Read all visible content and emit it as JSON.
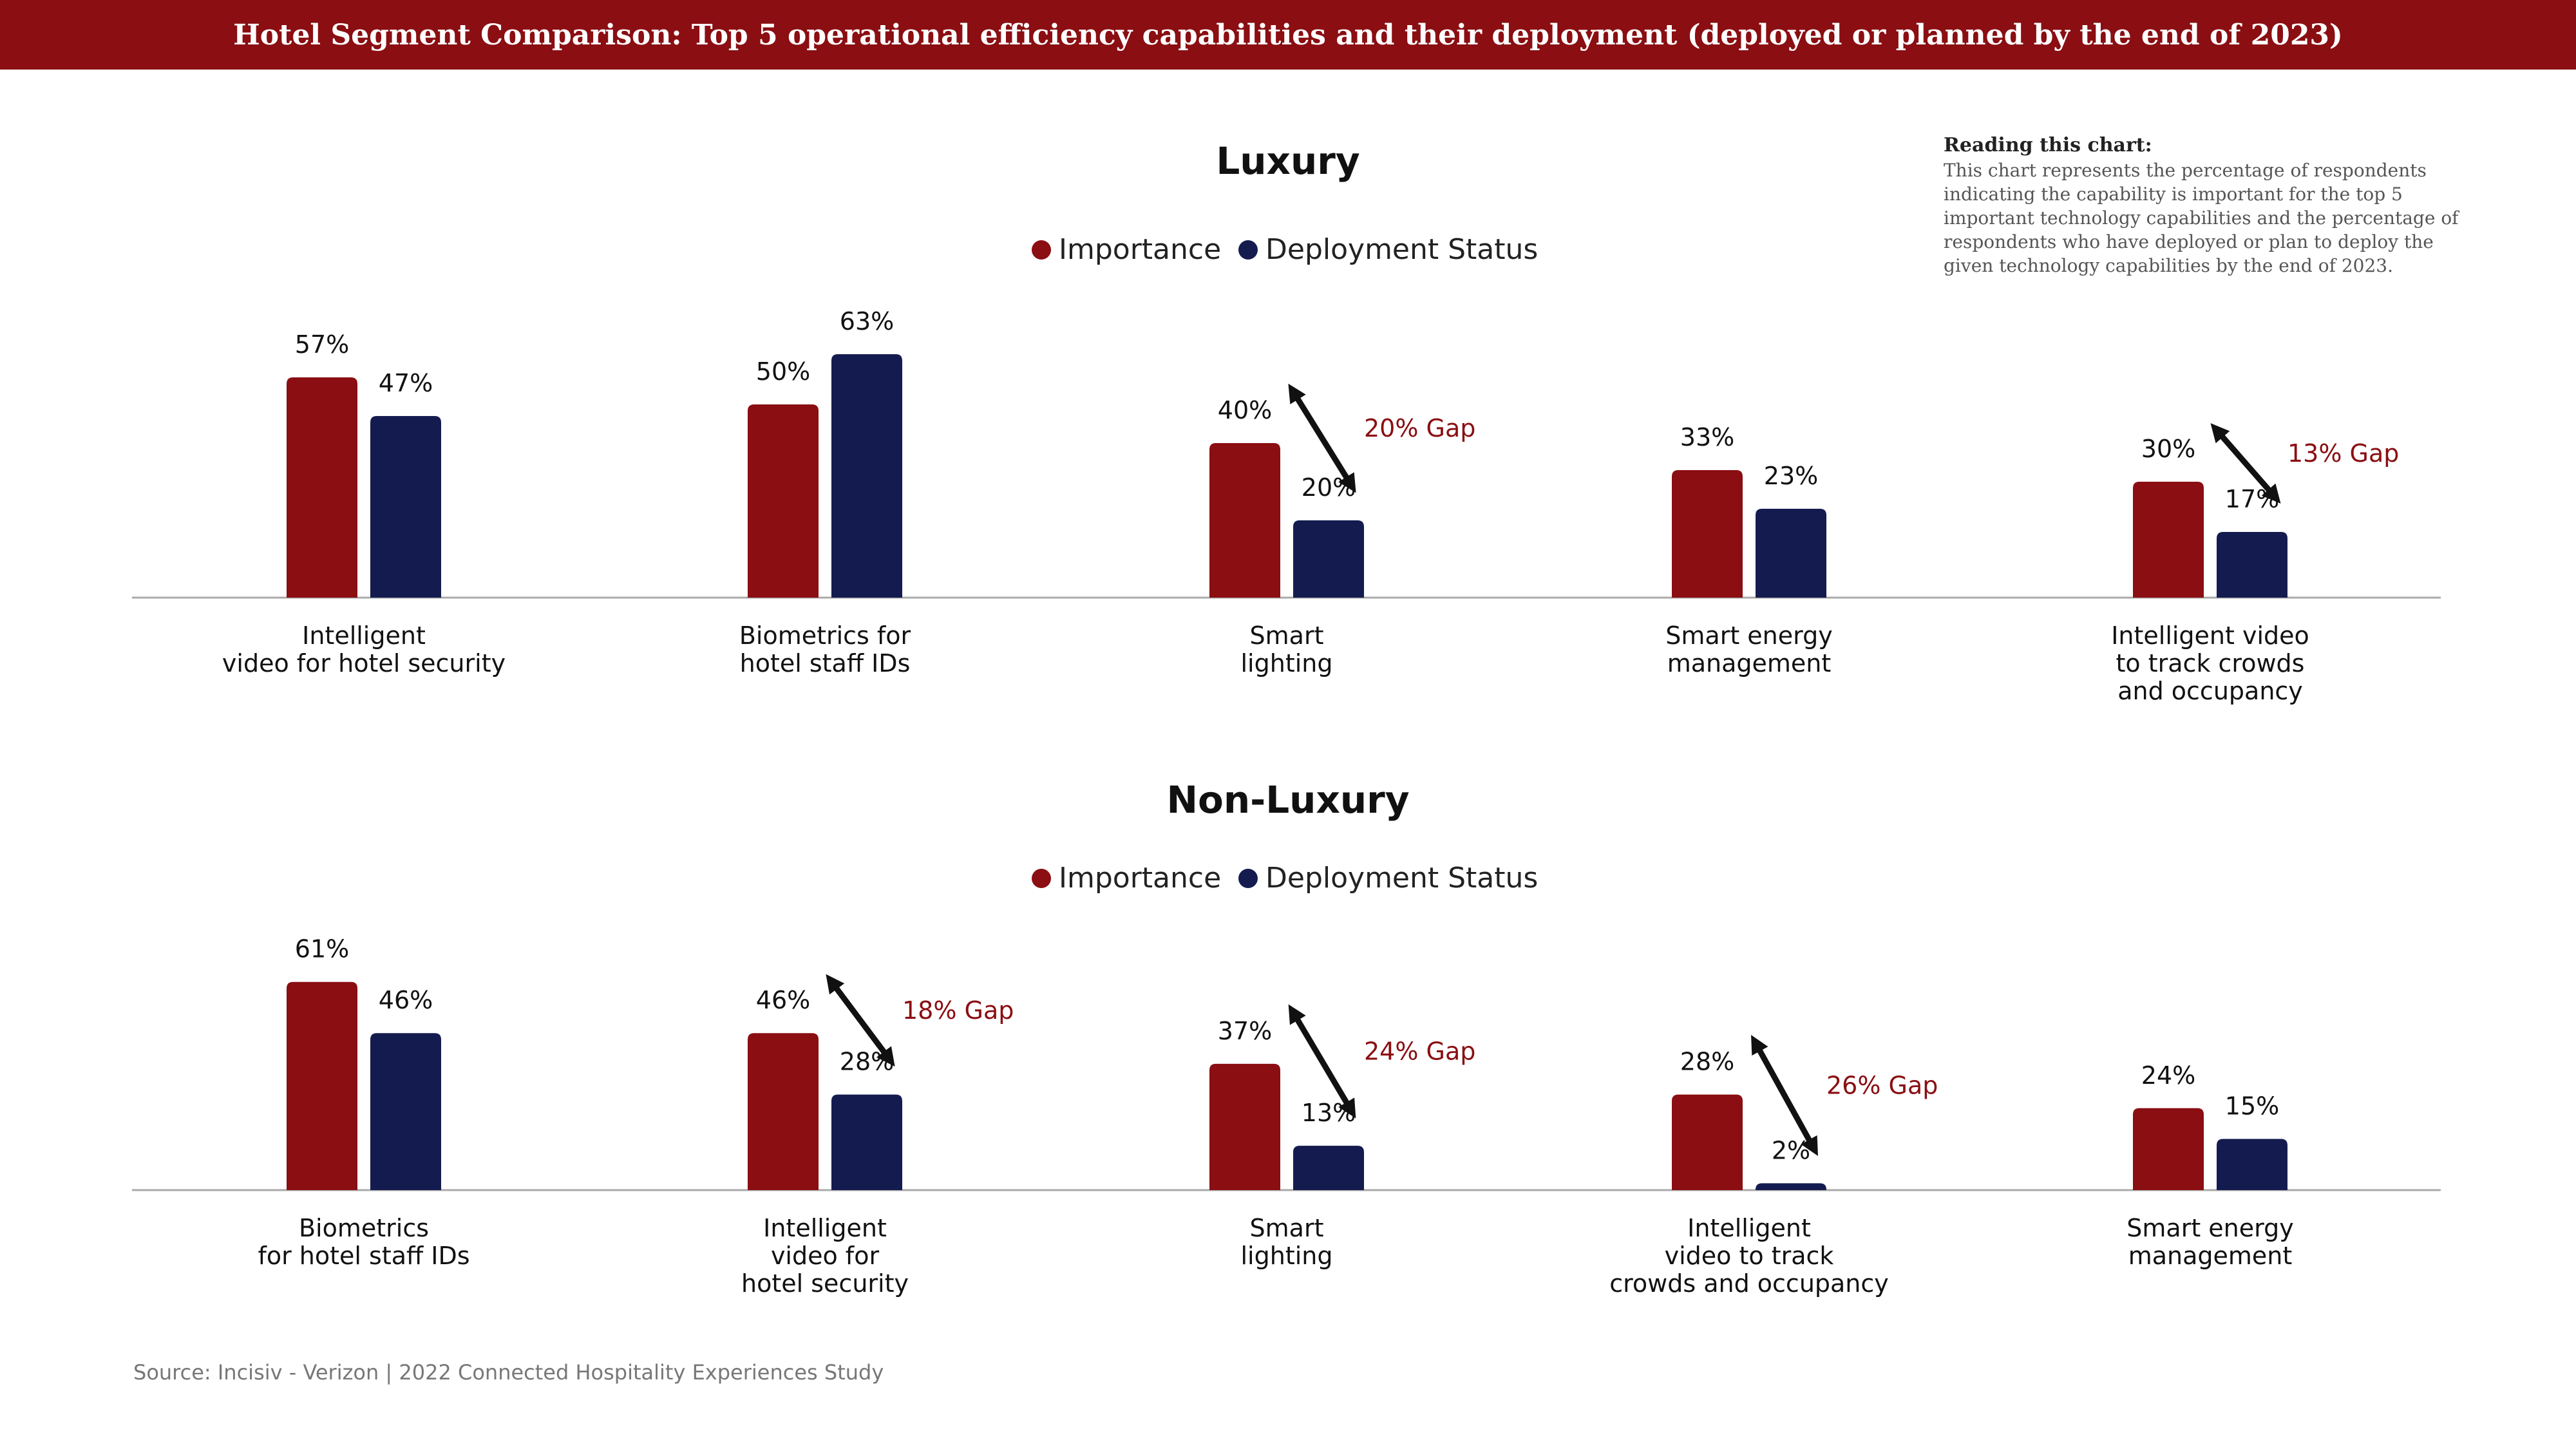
{
  "header": {
    "title": "Hotel Segment Comparison: Top 5 operational efficiency capabilities and their deployment (deployed or planned by the end of 2023)"
  },
  "note": {
    "heading": "Reading this chart:",
    "body": "This chart represents the percentage of respondents indicating the capability is important for the top 5 important technology capabilities and the percentage of respondents who have deployed or plan to deploy the given technology capabilities by the end of 2023."
  },
  "source": "Source: Incisiv - Verizon | 2022 Connected Hospitality Experiences Study",
  "colors": {
    "importance": "#8a0e12",
    "deployment": "#141c4f",
    "gap_text": "#8a0e12",
    "banner": "#8a0e12"
  },
  "chart_data": [
    {
      "type": "bar",
      "title": "Luxury",
      "legend": [
        "Importance",
        "Deployment Status"
      ],
      "legend_position": "top-center",
      "categories": [
        [
          "Intelligent",
          "video for hotel security"
        ],
        [
          "Biometrics for",
          "hotel staff IDs"
        ],
        [
          "Smart",
          "lighting"
        ],
        [
          "Smart energy",
          "management"
        ],
        [
          "Intelligent video",
          "to track crowds",
          "and occupancy"
        ]
      ],
      "series": [
        {
          "name": "Importance",
          "values": [
            57,
            50,
            40,
            33,
            30
          ]
        },
        {
          "name": "Deployment Status",
          "values": [
            47,
            63,
            20,
            23,
            17
          ]
        }
      ],
      "value_labels": [
        [
          "57%",
          "50%",
          "40%",
          "33%",
          "30%"
        ],
        [
          "47%",
          "63%",
          "20%",
          "23%",
          "17%"
        ]
      ],
      "gaps": [
        {
          "category": 2,
          "label": "20% Gap"
        },
        {
          "category": 4,
          "label": "13% Gap"
        }
      ],
      "ylim": [
        0,
        63
      ]
    },
    {
      "type": "bar",
      "title": "Non-Luxury",
      "legend": [
        "Importance",
        "Deployment Status"
      ],
      "legend_position": "top-center",
      "categories": [
        [
          "Biometrics",
          "for hotel staff IDs"
        ],
        [
          "Intelligent",
          "video for",
          "hotel security"
        ],
        [
          "Smart",
          "lighting"
        ],
        [
          "Intelligent",
          "video to track",
          "crowds and occupancy"
        ],
        [
          "Smart energy",
          "management"
        ]
      ],
      "series": [
        {
          "name": "Importance",
          "values": [
            61,
            46,
            37,
            28,
            24
          ]
        },
        {
          "name": "Deployment Status",
          "values": [
            46,
            28,
            13,
            2,
            15
          ]
        }
      ],
      "value_labels": [
        [
          "61%",
          "46%",
          "37%",
          "28%",
          "24%"
        ],
        [
          "46%",
          "28%",
          "13%",
          "2%",
          "15%"
        ]
      ],
      "gaps": [
        {
          "category": 1,
          "label": "18% Gap"
        },
        {
          "category": 2,
          "label": "24% Gap"
        },
        {
          "category": 3,
          "label": "26% Gap"
        }
      ],
      "ylim": [
        0,
        61
      ]
    }
  ]
}
